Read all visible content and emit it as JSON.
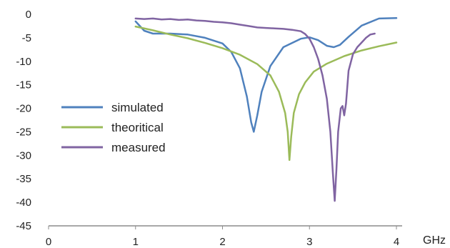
{
  "chart_data": {
    "type": "line",
    "title": "",
    "xlabel": "GHz",
    "ylabel": "",
    "xlim": [
      0,
      4
    ],
    "ylim": [
      -45,
      0
    ],
    "x_ticks": [
      "0",
      "1",
      "2",
      "3",
      "4"
    ],
    "y_ticks": [
      "0",
      "-5",
      "-10",
      "-15",
      "-20",
      "-25",
      "-30",
      "-35",
      "-40",
      "-45"
    ],
    "grid": false,
    "legend_position": "left",
    "series": [
      {
        "name": "simulated",
        "color": "#4f81bd",
        "points": [
          [
            1.0,
            -1.5
          ],
          [
            1.05,
            -2.5
          ],
          [
            1.1,
            -3.5
          ],
          [
            1.2,
            -4.1
          ],
          [
            1.4,
            -4.1
          ],
          [
            1.6,
            -4.3
          ],
          [
            1.8,
            -5.0
          ],
          [
            2.0,
            -6.2
          ],
          [
            2.1,
            -8.0
          ],
          [
            2.2,
            -11.5
          ],
          [
            2.28,
            -17.5
          ],
          [
            2.33,
            -23.0
          ],
          [
            2.36,
            -25.0
          ],
          [
            2.4,
            -21.5
          ],
          [
            2.45,
            -16.5
          ],
          [
            2.55,
            -11.0
          ],
          [
            2.7,
            -7.0
          ],
          [
            2.9,
            -5.2
          ],
          [
            3.0,
            -4.9
          ],
          [
            3.1,
            -5.5
          ],
          [
            3.2,
            -6.7
          ],
          [
            3.28,
            -7.0
          ],
          [
            3.35,
            -6.5
          ],
          [
            3.45,
            -4.8
          ],
          [
            3.6,
            -2.4
          ],
          [
            3.8,
            -0.9
          ],
          [
            4.0,
            -0.8
          ]
        ]
      },
      {
        "name": "theoritical",
        "color": "#9bbb59",
        "points": [
          [
            1.0,
            -2.6
          ],
          [
            1.2,
            -3.4
          ],
          [
            1.4,
            -4.3
          ],
          [
            1.6,
            -5.1
          ],
          [
            1.8,
            -6.1
          ],
          [
            2.0,
            -7.2
          ],
          [
            2.2,
            -8.6
          ],
          [
            2.4,
            -10.6
          ],
          [
            2.55,
            -13.0
          ],
          [
            2.65,
            -16.5
          ],
          [
            2.72,
            -21.0
          ],
          [
            2.75,
            -25.0
          ],
          [
            2.77,
            -31.0
          ],
          [
            2.79,
            -26.0
          ],
          [
            2.82,
            -21.0
          ],
          [
            2.88,
            -17.0
          ],
          [
            2.95,
            -14.5
          ],
          [
            3.05,
            -12.2
          ],
          [
            3.2,
            -10.5
          ],
          [
            3.4,
            -8.9
          ],
          [
            3.6,
            -7.7
          ],
          [
            3.8,
            -6.8
          ],
          [
            4.0,
            -6.0
          ]
        ]
      },
      {
        "name": "measured",
        "color": "#8064a2",
        "points": [
          [
            1.0,
            -0.9
          ],
          [
            1.1,
            -1.0
          ],
          [
            1.2,
            -0.9
          ],
          [
            1.3,
            -1.1
          ],
          [
            1.4,
            -1.0
          ],
          [
            1.5,
            -1.2
          ],
          [
            1.6,
            -1.1
          ],
          [
            1.7,
            -1.3
          ],
          [
            1.8,
            -1.4
          ],
          [
            1.9,
            -1.6
          ],
          [
            2.0,
            -1.7
          ],
          [
            2.1,
            -1.9
          ],
          [
            2.2,
            -2.2
          ],
          [
            2.3,
            -2.5
          ],
          [
            2.4,
            -2.8
          ],
          [
            2.5,
            -2.9
          ],
          [
            2.6,
            -3.0
          ],
          [
            2.7,
            -3.1
          ],
          [
            2.8,
            -3.3
          ],
          [
            2.9,
            -3.6
          ],
          [
            2.95,
            -4.2
          ],
          [
            3.0,
            -5.2
          ],
          [
            3.05,
            -7.0
          ],
          [
            3.1,
            -9.5
          ],
          [
            3.15,
            -13.0
          ],
          [
            3.2,
            -18.0
          ],
          [
            3.24,
            -25.0
          ],
          [
            3.27,
            -34.0
          ],
          [
            3.29,
            -39.7
          ],
          [
            3.31,
            -33.0
          ],
          [
            3.33,
            -25.0
          ],
          [
            3.36,
            -20.0
          ],
          [
            3.38,
            -19.5
          ],
          [
            3.4,
            -21.5
          ],
          [
            3.42,
            -19.0
          ],
          [
            3.45,
            -12.0
          ],
          [
            3.5,
            -8.5
          ],
          [
            3.55,
            -7.0
          ],
          [
            3.6,
            -6.0
          ],
          [
            3.65,
            -5.0
          ],
          [
            3.7,
            -4.3
          ],
          [
            3.75,
            -4.1
          ]
        ]
      }
    ]
  }
}
